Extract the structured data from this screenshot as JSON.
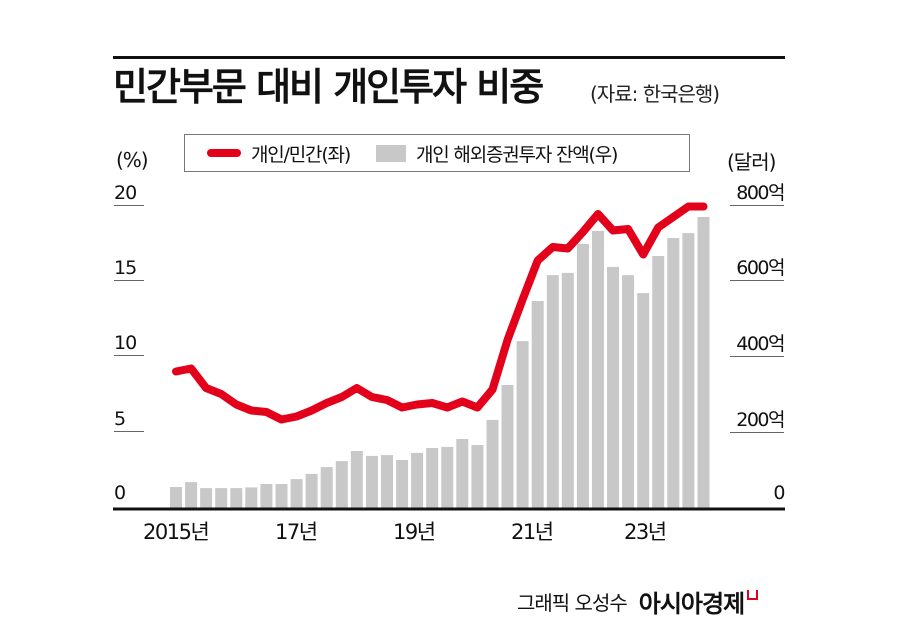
{
  "header": {
    "title": "민간부문 대비 개인투자 비중",
    "source": "(자료: 한국은행)"
  },
  "legend": {
    "line_label": "개인/민간(좌)",
    "bar_label": "개인 해외증권투자 잔액(우)"
  },
  "axes": {
    "left_unit": "(%)",
    "right_unit": "(달러)",
    "left_ticks": [
      "20",
      "15",
      "10",
      "5",
      "0"
    ],
    "right_ticks": [
      "800억",
      "600억",
      "400억",
      "200억",
      "0"
    ],
    "x_labels": [
      "2015년",
      "17년",
      "19년",
      "21년",
      "23년"
    ]
  },
  "credit": {
    "author": "그래픽 오성수",
    "brand": "아시아경제"
  },
  "colors": {
    "line": "#e3001b",
    "bar": "#c8c8c8",
    "axis": "#111111"
  },
  "chart_data": {
    "type": "bar+line",
    "title": "민간부문 대비 개인투자 비중",
    "subtitle": "(자료: 한국은행)",
    "xlabel": "",
    "ylabel_left": "(%)",
    "ylabel_right": "(달러)",
    "ylim_left": [
      0,
      20
    ],
    "ylim_right": [
      0,
      800
    ],
    "x_tick_labels": [
      "2015년",
      "17년",
      "19년",
      "21년",
      "23년"
    ],
    "categories": [
      "2015Q1",
      "2015Q2",
      "2015Q3",
      "2015Q4",
      "2016Q1",
      "2016Q2",
      "2016Q3",
      "2016Q4",
      "2017Q1",
      "2017Q2",
      "2017Q3",
      "2017Q4",
      "2018Q1",
      "2018Q2",
      "2018Q3",
      "2018Q4",
      "2019Q1",
      "2019Q2",
      "2019Q3",
      "2019Q4",
      "2020Q1",
      "2020Q2",
      "2020Q3",
      "2020Q4",
      "2021Q1",
      "2021Q2",
      "2021Q3",
      "2021Q4",
      "2022Q1",
      "2022Q2",
      "2022Q3",
      "2022Q4",
      "2023Q1",
      "2023Q2",
      "2023Q3",
      "2023Q4"
    ],
    "series": [
      {
        "name": "개인/민간(좌)",
        "type": "line",
        "axis": "left",
        "unit": "%",
        "values": [
          9.1,
          9.3,
          8.0,
          7.6,
          6.9,
          6.5,
          6.4,
          5.9,
          6.1,
          6.5,
          7.0,
          7.4,
          8.0,
          7.4,
          7.2,
          6.7,
          6.9,
          7.0,
          6.7,
          7.1,
          6.7,
          7.9,
          11.2,
          13.9,
          16.5,
          17.4,
          17.3,
          18.4,
          19.6,
          18.5,
          18.6,
          16.9,
          18.7,
          19.4,
          20.1,
          20.1
        ]
      },
      {
        "name": "개인 해외증권투자 잔액(우)",
        "type": "bar",
        "axis": "right",
        "unit": "억 달러",
        "values": [
          56,
          69,
          53,
          53,
          53,
          55,
          64,
          64,
          77,
          91,
          109,
          125,
          152,
          139,
          141,
          128,
          147,
          160,
          163,
          184,
          168,
          235,
          328,
          445,
          552,
          621,
          627,
          704,
          739,
          643,
          621,
          573,
          672,
          720,
          733,
          776
        ]
      }
    ],
    "grid": false,
    "legend_position": "top"
  }
}
